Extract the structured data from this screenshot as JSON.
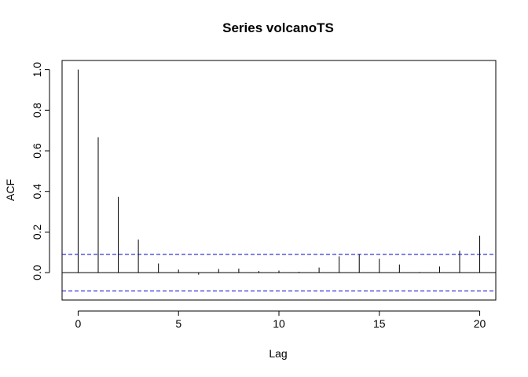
{
  "chart_data": {
    "type": "bar",
    "title": "Series  volcanoTS",
    "xlabel": "Lag",
    "ylabel": "ACF",
    "xlim": [
      -0.8,
      20.8
    ],
    "ylim": [
      -0.135,
      1.045
    ],
    "x_ticks": [
      0,
      5,
      10,
      15,
      20
    ],
    "y_ticks": [
      0.0,
      0.2,
      0.4,
      0.6,
      0.8,
      1.0
    ],
    "x_tick_labels": [
      "0",
      "5",
      "10",
      "15",
      "20"
    ],
    "y_tick_labels": [
      "0.0",
      "0.2",
      "0.4",
      "0.6",
      "0.8",
      "1.0"
    ],
    "lags": [
      0,
      1,
      2,
      3,
      4,
      5,
      6,
      7,
      8,
      9,
      10,
      11,
      12,
      13,
      14,
      15,
      16,
      17,
      18,
      19,
      20
    ],
    "values": [
      1.0,
      0.667,
      0.373,
      0.163,
      0.045,
      0.015,
      -0.01,
      0.018,
      0.02,
      0.008,
      0.01,
      0.004,
      0.025,
      0.08,
      0.09,
      0.068,
      0.04,
      0.003,
      0.03,
      0.108,
      0.182
    ],
    "confidence_limits": [
      0.09,
      -0.09
    ],
    "confidence_line_color": "#0000cc",
    "bar_color": "#000000",
    "grid": false
  }
}
